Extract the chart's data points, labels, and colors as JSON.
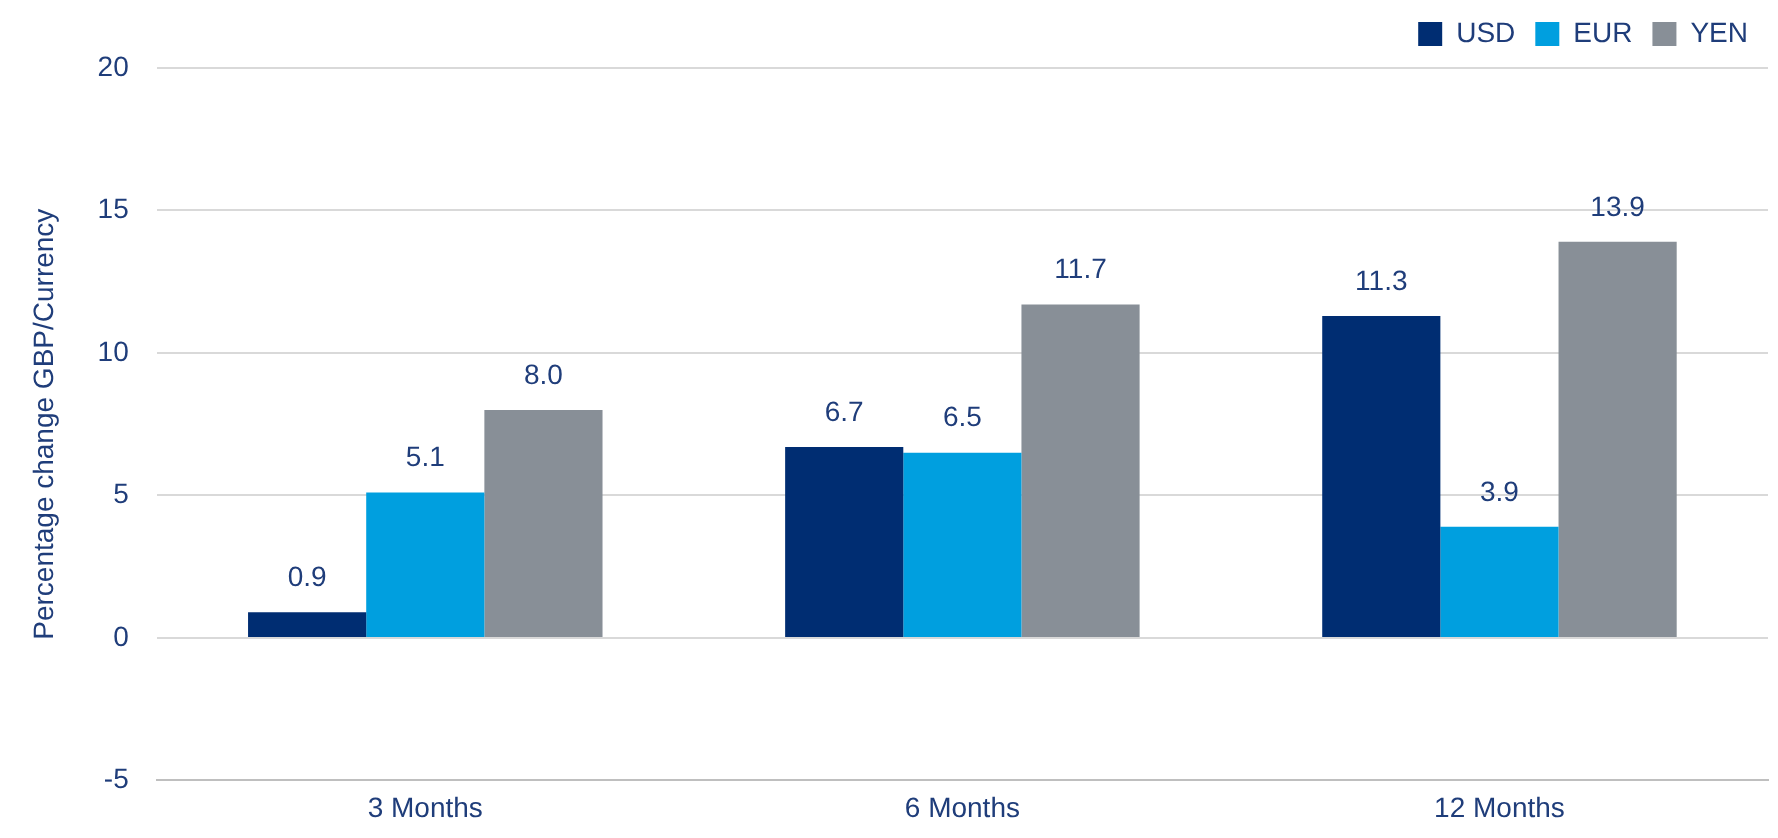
{
  "chart_data": {
    "type": "bar",
    "ylabel": "Percentage change GBP/Currency",
    "categories": [
      "3 Months",
      "6 Months",
      "12 Months"
    ],
    "series": [
      {
        "name": "USD",
        "color": "#002d72",
        "values": [
          0.9,
          6.7,
          11.3
        ],
        "value_labels": [
          "0.9",
          "6.7",
          "11.3"
        ]
      },
      {
        "name": "EUR",
        "color": "#009fdf",
        "values": [
          5.1,
          6.5,
          3.9
        ],
        "value_labels": [
          "5.1",
          "6.5",
          "3.9"
        ]
      },
      {
        "name": "YEN",
        "color": "#888f97",
        "values": [
          8.0,
          11.7,
          13.9
        ],
        "value_labels": [
          "8.0",
          "11.7",
          "13.9"
        ]
      }
    ],
    "ylim": [
      -5,
      20
    ],
    "yticks": [
      -5,
      0,
      5,
      10,
      15,
      20
    ],
    "grid": "y",
    "legend": "top right"
  }
}
